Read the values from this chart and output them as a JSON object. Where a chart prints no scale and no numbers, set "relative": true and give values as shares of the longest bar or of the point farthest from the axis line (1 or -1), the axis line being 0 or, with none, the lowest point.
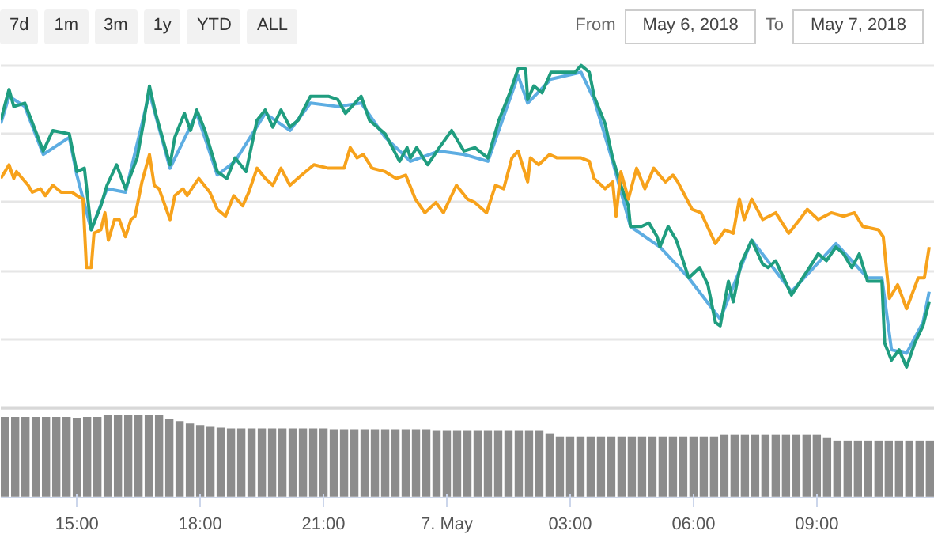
{
  "chart_data": [
    {
      "type": "line",
      "relative": true,
      "grid": "y",
      "tick_labels": false,
      "xlim": [
        "2018-05-06T13:09",
        "2018-05-07T11:51"
      ],
      "annotations": [
        "7d",
        "1m",
        "3m",
        "1y",
        "YTD",
        "ALL",
        "From",
        "May 6, 2018",
        "To",
        "May 7, 2018"
      ],
      "series": [
        {
          "color": "#5dade2",
          "x": [
            "2018-05-06T13:09",
            "2018-05-06T13:21",
            "2018-05-06T13:44",
            "2018-05-06T14:11",
            "2018-05-06T14:49",
            "2018-05-06T15:00",
            "2018-05-06T15:21",
            "2018-05-06T15:44",
            "2018-05-06T16:11",
            "2018-05-06T16:46",
            "2018-05-06T17:16",
            "2018-05-06T17:55",
            "2018-05-06T18:25",
            "2018-05-06T18:51",
            "2018-05-06T19:35",
            "2018-05-06T20:11",
            "2018-05-06T20:41",
            "2018-05-06T21:21",
            "2018-05-06T21:55",
            "2018-05-06T22:30",
            "2018-05-06T23:07",
            "2018-05-06T23:49",
            "2018-05-07T00:25",
            "2018-05-07T01:00",
            "2018-05-07T01:44",
            "2018-05-07T01:58",
            "2018-05-07T02:32",
            "2018-05-07T03:16",
            "2018-05-07T03:35",
            "2018-05-07T04:02",
            "2018-05-07T04:28",
            "2018-05-07T05:11",
            "2018-05-07T05:53",
            "2018-05-07T06:39",
            "2018-05-07T07:25",
            "2018-05-07T08:23",
            "2018-05-07T09:28",
            "2018-05-07T10:14",
            "2018-05-07T10:35",
            "2018-05-07T10:49",
            "2018-05-07T11:11",
            "2018-05-07T11:35",
            "2018-05-07T11:44"
          ],
          "values": [
            0.83,
            0.91,
            0.88,
            0.74,
            0.79,
            0.68,
            0.52,
            0.64,
            0.63,
            0.92,
            0.7,
            0.86,
            0.68,
            0.72,
            0.86,
            0.81,
            0.89,
            0.88,
            0.89,
            0.79,
            0.72,
            0.75,
            0.74,
            0.72,
            0.97,
            0.89,
            0.96,
            0.98,
            0.9,
            0.72,
            0.53,
            0.47,
            0.38,
            0.26,
            0.49,
            0.34,
            0.48,
            0.38,
            0.38,
            0.17,
            0.16,
            0.25,
            0.34
          ]
        },
        {
          "color": "#1f9d7f",
          "x": [
            "2018-05-06T13:09",
            "2018-05-06T13:21",
            "2018-05-06T13:28",
            "2018-05-06T13:44",
            "2018-05-06T14:11",
            "2018-05-06T14:25",
            "2018-05-06T14:49",
            "2018-05-06T15:00",
            "2018-05-06T15:11",
            "2018-05-06T15:21",
            "2018-05-06T15:35",
            "2018-05-06T15:44",
            "2018-05-06T15:58",
            "2018-05-06T16:11",
            "2018-05-06T16:28",
            "2018-05-06T16:37",
            "2018-05-06T16:46",
            "2018-05-06T16:55",
            "2018-05-06T17:16",
            "2018-05-06T17:23",
            "2018-05-06T17:37",
            "2018-05-06T17:46",
            "2018-05-06T17:55",
            "2018-05-06T18:07",
            "2018-05-06T18:25",
            "2018-05-06T18:39",
            "2018-05-06T18:51",
            "2018-05-06T19:07",
            "2018-05-06T19:23",
            "2018-05-06T19:35",
            "2018-05-06T19:46",
            "2018-05-06T19:58",
            "2018-05-06T20:11",
            "2018-05-06T20:23",
            "2018-05-06T20:41",
            "2018-05-06T21:07",
            "2018-05-06T21:21",
            "2018-05-06T21:32",
            "2018-05-06T21:55",
            "2018-05-06T22:07",
            "2018-05-06T22:30",
            "2018-05-06T22:51",
            "2018-05-06T23:02",
            "2018-05-06T23:07",
            "2018-05-06T23:16",
            "2018-05-06T23:32",
            "2018-05-06T23:49",
            "2018-05-07T00:07",
            "2018-05-07T00:25",
            "2018-05-07T00:41",
            "2018-05-07T01:00",
            "2018-05-07T01:16",
            "2018-05-07T01:32",
            "2018-05-07T01:44",
            "2018-05-07T01:55",
            "2018-05-07T01:58",
            "2018-05-07T02:07",
            "2018-05-07T02:19",
            "2018-05-07T02:32",
            "2018-05-07T02:53",
            "2018-05-07T03:07",
            "2018-05-07T03:16",
            "2018-05-07T03:28",
            "2018-05-07T03:35",
            "2018-05-07T03:51",
            "2018-05-07T04:02",
            "2018-05-07T04:14",
            "2018-05-07T04:25",
            "2018-05-07T04:28",
            "2018-05-07T04:44",
            "2018-05-07T04:55",
            "2018-05-07T05:07",
            "2018-05-07T05:11",
            "2018-05-07T05:23",
            "2018-05-07T05:35",
            "2018-05-07T05:53",
            "2018-05-07T06:09",
            "2018-05-07T06:21",
            "2018-05-07T06:32",
            "2018-05-07T06:39",
            "2018-05-07T06:51",
            "2018-05-07T06:58",
            "2018-05-07T07:09",
            "2018-05-07T07:25",
            "2018-05-07T07:41",
            "2018-05-07T07:49",
            "2018-05-07T08:00",
            "2018-05-07T08:23",
            "2018-05-07T08:46",
            "2018-05-07T09:02",
            "2018-05-07T09:14",
            "2018-05-07T09:28",
            "2018-05-07T09:39",
            "2018-05-07T09:51",
            "2018-05-07T10:02",
            "2018-05-07T10:14",
            "2018-05-07T10:35",
            "2018-05-07T10:39",
            "2018-05-07T10:49",
            "2018-05-07T11:00",
            "2018-05-07T11:11",
            "2018-05-07T11:23",
            "2018-05-07T11:35",
            "2018-05-07T11:44"
          ],
          "values": [
            0.84,
            0.93,
            0.88,
            0.89,
            0.75,
            0.81,
            0.8,
            0.69,
            0.7,
            0.52,
            0.59,
            0.65,
            0.71,
            0.64,
            0.73,
            0.83,
            0.94,
            0.86,
            0.71,
            0.79,
            0.86,
            0.81,
            0.87,
            0.81,
            0.69,
            0.67,
            0.73,
            0.69,
            0.84,
            0.87,
            0.82,
            0.87,
            0.82,
            0.84,
            0.91,
            0.91,
            0.9,
            0.86,
            0.91,
            0.84,
            0.8,
            0.72,
            0.76,
            0.73,
            0.76,
            0.71,
            0.76,
            0.81,
            0.75,
            0.76,
            0.73,
            0.84,
            0.92,
            0.99,
            0.99,
            0.9,
            0.94,
            0.92,
            0.98,
            0.98,
            0.98,
            1.0,
            0.98,
            0.91,
            0.83,
            0.73,
            0.65,
            0.59,
            0.53,
            0.53,
            0.54,
            0.5,
            0.47,
            0.53,
            0.49,
            0.38,
            0.41,
            0.36,
            0.25,
            0.24,
            0.37,
            0.31,
            0.42,
            0.49,
            0.42,
            0.41,
            0.43,
            0.33,
            0.4,
            0.45,
            0.43,
            0.47,
            0.45,
            0.41,
            0.45,
            0.37,
            0.37,
            0.19,
            0.14,
            0.17,
            0.12,
            0.19,
            0.24,
            0.31
          ]
        },
        {
          "color": "#f7a21b",
          "x": [
            "2018-05-06T13:09",
            "2018-05-06T13:21",
            "2018-05-06T13:28",
            "2018-05-06T13:32",
            "2018-05-06T13:49",
            "2018-05-06T13:55",
            "2018-05-06T14:07",
            "2018-05-06T14:14",
            "2018-05-06T14:25",
            "2018-05-06T14:37",
            "2018-05-06T14:53",
            "2018-05-06T15:00",
            "2018-05-06T15:09",
            "2018-05-06T15:14",
            "2018-05-06T15:21",
            "2018-05-06T15:25",
            "2018-05-06T15:35",
            "2018-05-06T15:41",
            "2018-05-06T15:46",
            "2018-05-06T15:55",
            "2018-05-06T16:02",
            "2018-05-06T16:11",
            "2018-05-06T16:19",
            "2018-05-06T16:25",
            "2018-05-06T16:35",
            "2018-05-06T16:46",
            "2018-05-06T16:53",
            "2018-05-06T17:00",
            "2018-05-06T17:16",
            "2018-05-06T17:23",
            "2018-05-06T17:35",
            "2018-05-06T17:41",
            "2018-05-06T17:51",
            "2018-05-06T17:58",
            "2018-05-06T18:14",
            "2018-05-06T18:25",
            "2018-05-06T18:37",
            "2018-05-06T18:49",
            "2018-05-06T19:02",
            "2018-05-06T19:11",
            "2018-05-06T19:23",
            "2018-05-06T19:35",
            "2018-05-06T19:46",
            "2018-05-06T19:58",
            "2018-05-06T20:11",
            "2018-05-06T20:28",
            "2018-05-06T20:46",
            "2018-05-06T21:07",
            "2018-05-06T21:30",
            "2018-05-06T21:39",
            "2018-05-06T21:49",
            "2018-05-06T21:58",
            "2018-05-06T22:11",
            "2018-05-06T22:30",
            "2018-05-06T22:46",
            "2018-05-06T23:00",
            "2018-05-06T23:14",
            "2018-05-06T23:28",
            "2018-05-06T23:44",
            "2018-05-06T23:55",
            "2018-05-07T00:14",
            "2018-05-07T00:30",
            "2018-05-07T00:41",
            "2018-05-07T00:58",
            "2018-05-07T01:11",
            "2018-05-07T01:23",
            "2018-05-07T01:35",
            "2018-05-07T01:44",
            "2018-05-07T01:58",
            "2018-05-07T02:02",
            "2018-05-07T02:14",
            "2018-05-07T02:30",
            "2018-05-07T02:41",
            "2018-05-07T03:00",
            "2018-05-07T03:16",
            "2018-05-07T03:28",
            "2018-05-07T03:35",
            "2018-05-07T03:51",
            "2018-05-07T04:02",
            "2018-05-07T04:07",
            "2018-05-07T04:14",
            "2018-05-07T04:25",
            "2018-05-07T04:37",
            "2018-05-07T04:49",
            "2018-05-07T05:02",
            "2018-05-07T05:19",
            "2018-05-07T05:30",
            "2018-05-07T05:37",
            "2018-05-07T05:58",
            "2018-05-07T06:11",
            "2018-05-07T06:32",
            "2018-05-07T06:46",
            "2018-05-07T06:58",
            "2018-05-07T07:07",
            "2018-05-07T07:14",
            "2018-05-07T07:25",
            "2018-05-07T07:41",
            "2018-05-07T08:00",
            "2018-05-07T08:19",
            "2018-05-07T08:35",
            "2018-05-07T08:46",
            "2018-05-07T09:02",
            "2018-05-07T09:21",
            "2018-05-07T09:39",
            "2018-05-07T09:55",
            "2018-05-07T10:07",
            "2018-05-07T10:30",
            "2018-05-07T10:37",
            "2018-05-07T10:46",
            "2018-05-07T10:58",
            "2018-05-07T11:11",
            "2018-05-07T11:28",
            "2018-05-07T11:37",
            "2018-05-07T11:44"
          ],
          "values": [
            0.67,
            0.71,
            0.67,
            0.69,
            0.65,
            0.63,
            0.64,
            0.62,
            0.65,
            0.63,
            0.63,
            0.62,
            0.61,
            0.41,
            0.41,
            0.51,
            0.52,
            0.57,
            0.49,
            0.55,
            0.55,
            0.5,
            0.55,
            0.56,
            0.66,
            0.74,
            0.65,
            0.64,
            0.55,
            0.62,
            0.64,
            0.62,
            0.65,
            0.67,
            0.63,
            0.58,
            0.56,
            0.62,
            0.59,
            0.63,
            0.7,
            0.67,
            0.65,
            0.7,
            0.65,
            0.68,
            0.71,
            0.7,
            0.7,
            0.76,
            0.73,
            0.74,
            0.7,
            0.69,
            0.67,
            0.68,
            0.61,
            0.57,
            0.6,
            0.57,
            0.65,
            0.61,
            0.6,
            0.57,
            0.65,
            0.64,
            0.73,
            0.75,
            0.66,
            0.73,
            0.71,
            0.74,
            0.73,
            0.73,
            0.73,
            0.72,
            0.67,
            0.64,
            0.66,
            0.56,
            0.69,
            0.61,
            0.7,
            0.64,
            0.7,
            0.66,
            0.68,
            0.66,
            0.58,
            0.57,
            0.48,
            0.52,
            0.51,
            0.61,
            0.55,
            0.61,
            0.55,
            0.57,
            0.51,
            0.55,
            0.58,
            0.55,
            0.57,
            0.56,
            0.57,
            0.53,
            0.52,
            0.5,
            0.32,
            0.36,
            0.29,
            0.38,
            0.38,
            0.47
          ]
        }
      ]
    },
    {
      "type": "bar",
      "relative": true,
      "tick_labels": "x",
      "color": "#8c8c8c",
      "xlim": [
        "2018-05-06T13:09",
        "2018-05-07T11:51"
      ],
      "xticks": [
        {
          "value": "2018-05-06T15:00",
          "label": "15:00"
        },
        {
          "value": "2018-05-06T18:00",
          "label": "18:00"
        },
        {
          "value": "2018-05-06T21:00",
          "label": "21:00"
        },
        {
          "value": "2018-05-07T00:00",
          "label": "7. May"
        },
        {
          "value": "2018-05-07T03:00",
          "label": "03:00"
        },
        {
          "value": "2018-05-07T06:00",
          "label": "06:00"
        },
        {
          "value": "2018-05-07T09:00",
          "label": "09:00"
        }
      ],
      "x": [
        "2018-05-06T13:15",
        "2018-05-06T13:30",
        "2018-05-06T13:45",
        "2018-05-06T14:00",
        "2018-05-06T14:15",
        "2018-05-06T14:30",
        "2018-05-06T14:45",
        "2018-05-06T15:00",
        "2018-05-06T15:15",
        "2018-05-06T15:30",
        "2018-05-06T15:45",
        "2018-05-06T16:00",
        "2018-05-06T16:15",
        "2018-05-06T16:30",
        "2018-05-06T16:45",
        "2018-05-06T17:00",
        "2018-05-06T17:15",
        "2018-05-06T17:30",
        "2018-05-06T17:45",
        "2018-05-06T18:00",
        "2018-05-06T18:15",
        "2018-05-06T18:30",
        "2018-05-06T18:45",
        "2018-05-06T19:00",
        "2018-05-06T19:15",
        "2018-05-06T19:30",
        "2018-05-06T19:45",
        "2018-05-06T20:00",
        "2018-05-06T20:15",
        "2018-05-06T20:30",
        "2018-05-06T20:45",
        "2018-05-06T21:00",
        "2018-05-06T21:15",
        "2018-05-06T21:30",
        "2018-05-06T21:45",
        "2018-05-06T22:00",
        "2018-05-06T22:15",
        "2018-05-06T22:30",
        "2018-05-06T22:45",
        "2018-05-06T23:00",
        "2018-05-06T23:15",
        "2018-05-06T23:30",
        "2018-05-06T23:45",
        "2018-05-07T00:00",
        "2018-05-07T00:15",
        "2018-05-07T00:30",
        "2018-05-07T00:45",
        "2018-05-07T01:00",
        "2018-05-07T01:15",
        "2018-05-07T01:30",
        "2018-05-07T01:45",
        "2018-05-07T02:00",
        "2018-05-07T02:15",
        "2018-05-07T02:30",
        "2018-05-07T02:45",
        "2018-05-07T03:00",
        "2018-05-07T03:15",
        "2018-05-07T03:30",
        "2018-05-07T03:45",
        "2018-05-07T04:00",
        "2018-05-07T04:15",
        "2018-05-07T04:30",
        "2018-05-07T04:45",
        "2018-05-07T05:00",
        "2018-05-07T05:15",
        "2018-05-07T05:30",
        "2018-05-07T05:45",
        "2018-05-07T06:00",
        "2018-05-07T06:15",
        "2018-05-07T06:30",
        "2018-05-07T06:45",
        "2018-05-07T07:00",
        "2018-05-07T07:15",
        "2018-05-07T07:30",
        "2018-05-07T07:45",
        "2018-05-07T08:00",
        "2018-05-07T08:15",
        "2018-05-07T08:30",
        "2018-05-07T08:45",
        "2018-05-07T09:00",
        "2018-05-07T09:15",
        "2018-05-07T09:30",
        "2018-05-07T09:45",
        "2018-05-07T10:00",
        "2018-05-07T10:15",
        "2018-05-07T10:30",
        "2018-05-07T10:45",
        "2018-05-07T11:00",
        "2018-05-07T11:15",
        "2018-05-07T11:30",
        "2018-05-07T11:45"
      ],
      "values": [
        0.98,
        0.98,
        0.98,
        0.98,
        0.98,
        0.98,
        0.98,
        0.97,
        0.98,
        0.98,
        1.0,
        1.0,
        1.0,
        1.0,
        1.0,
        1.0,
        0.96,
        0.93,
        0.9,
        0.88,
        0.86,
        0.85,
        0.84,
        0.84,
        0.84,
        0.84,
        0.84,
        0.84,
        0.84,
        0.84,
        0.84,
        0.84,
        0.83,
        0.83,
        0.83,
        0.83,
        0.83,
        0.83,
        0.83,
        0.83,
        0.83,
        0.83,
        0.81,
        0.81,
        0.81,
        0.81,
        0.81,
        0.81,
        0.81,
        0.81,
        0.81,
        0.81,
        0.81,
        0.78,
        0.74,
        0.74,
        0.74,
        0.74,
        0.74,
        0.74,
        0.74,
        0.74,
        0.74,
        0.74,
        0.74,
        0.74,
        0.74,
        0.74,
        0.74,
        0.74,
        0.76,
        0.76,
        0.76,
        0.76,
        0.76,
        0.76,
        0.76,
        0.76,
        0.76,
        0.76,
        0.73,
        0.69,
        0.69,
        0.69,
        0.69,
        0.69,
        0.69,
        0.69,
        0.69,
        0.69,
        0.69
      ]
    }
  ]
}
